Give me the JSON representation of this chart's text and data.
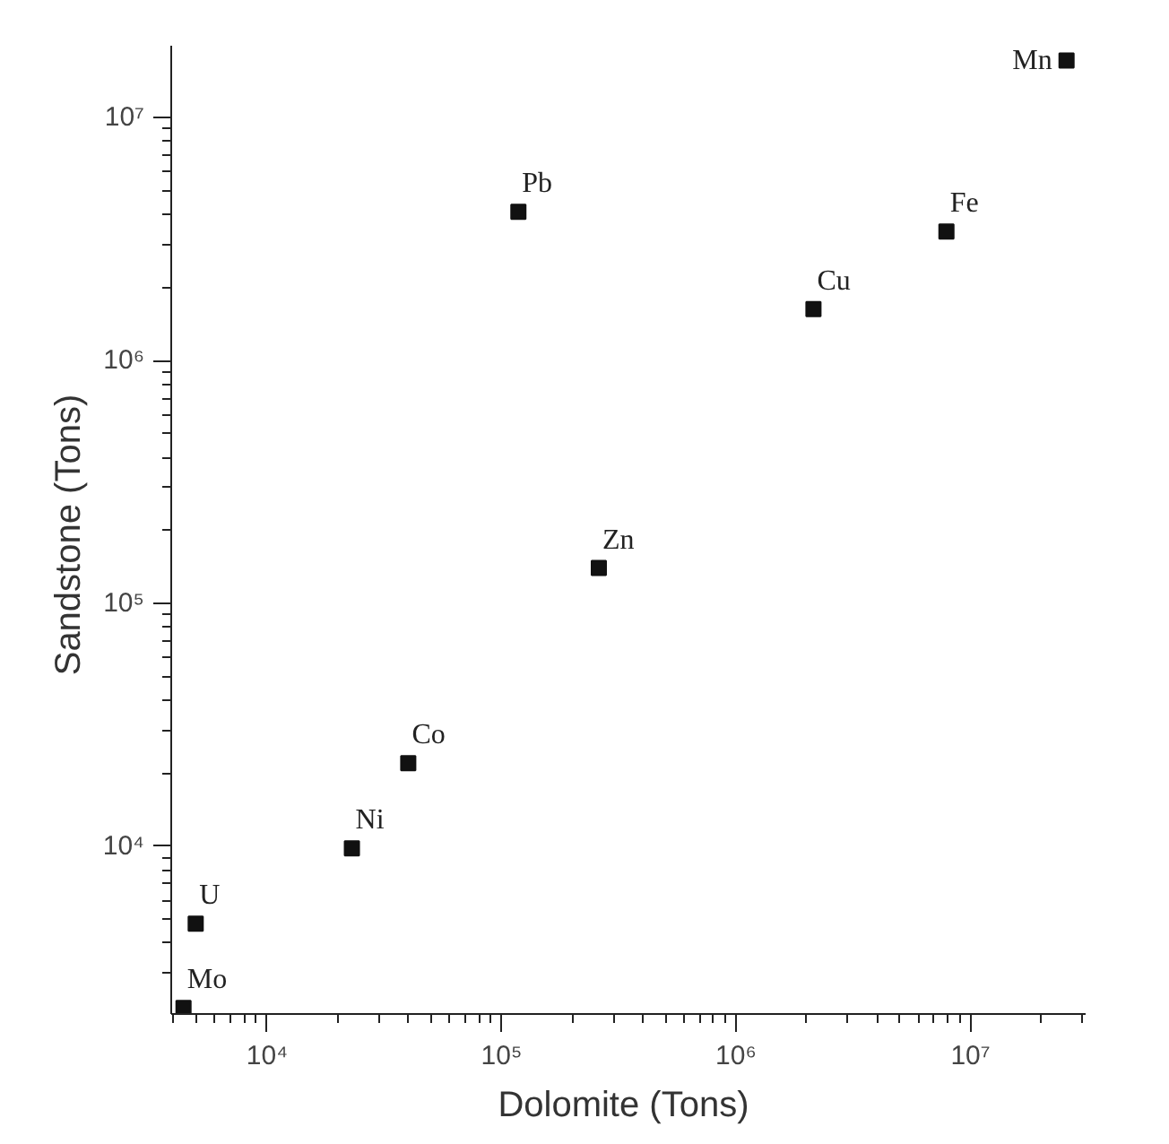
{
  "chart_data": {
    "type": "scatter",
    "xlabel": "Dolomite  (Tons)",
    "ylabel": "Sandstone  (Tons)",
    "log": "xy",
    "grid": false,
    "marker": "square",
    "x": [
      4400,
      4960,
      23000,
      40000,
      118000,
      260000,
      2140000,
      7900000,
      25700000
    ],
    "series": [
      {
        "color": "#111111",
        "values": [
          2160,
          4800,
          9800,
          22000,
          4100000,
          140000,
          1630000,
          3400000,
          17200000
        ]
      }
    ],
    "xlim": [
      3900,
      31000000
    ],
    "ylim": [
      2040,
      19800000
    ],
    "xticks": [
      {
        "value": 10000,
        "label": "10⁴"
      },
      {
        "value": 100000,
        "label": "10⁵"
      },
      {
        "value": 1000000,
        "label": "10⁶"
      },
      {
        "value": 10000000,
        "label": "10⁷"
      }
    ],
    "yticks": [
      {
        "value": 10000,
        "label": "10⁴"
      },
      {
        "value": 100000,
        "label": "10⁵"
      },
      {
        "value": 1000000,
        "label": "10⁶"
      },
      {
        "value": 10000000,
        "label": "10⁷"
      }
    ],
    "annotations": [
      {
        "text": "Mo",
        "x": 4400,
        "y": 2160
      },
      {
        "text": "U",
        "x": 4960,
        "y": 4800
      },
      {
        "text": "Ni",
        "x": 23000,
        "y": 9800
      },
      {
        "text": "Co",
        "x": 40000,
        "y": 22000
      },
      {
        "text": "Pb",
        "x": 118000,
        "y": 4100000
      },
      {
        "text": "Zn",
        "x": 260000,
        "y": 140000
      },
      {
        "text": "Cu",
        "x": 2140000,
        "y": 1630000
      },
      {
        "text": "Fe",
        "x": 7900000,
        "y": 3400000
      },
      {
        "text": "Mn",
        "x": 25700000,
        "y": 17200000
      }
    ]
  }
}
